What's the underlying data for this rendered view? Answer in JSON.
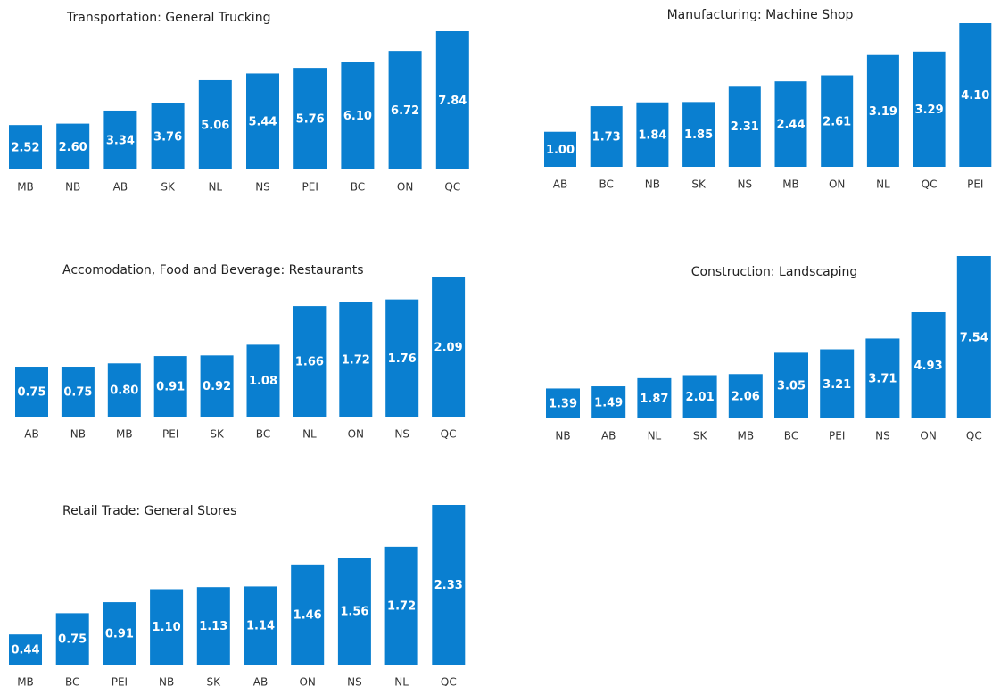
{
  "chart_data": [
    {
      "type": "bar",
      "title": "Transportation: General Trucking",
      "color": "#0a7fd0",
      "categories": [
        "MB",
        "NB",
        "AB",
        "SK",
        "NL",
        "NS",
        "PEI",
        "BC",
        "ON",
        "QC"
      ],
      "values": [
        2.52,
        2.6,
        3.34,
        3.76,
        5.06,
        5.44,
        5.76,
        6.1,
        6.72,
        7.84
      ],
      "value_labels": [
        "2.52",
        "2.60",
        "3.34",
        "3.76",
        "5.06",
        "5.44",
        "5.76",
        "6.10",
        "6.72",
        "7.84"
      ]
    },
    {
      "type": "bar",
      "title": "Manufacturing: Machine Shop",
      "color": "#0a7fd0",
      "categories": [
        "AB",
        "BC",
        "NB",
        "SK",
        "NS",
        "MB",
        "ON",
        "NL",
        "QC",
        "PEI"
      ],
      "values": [
        1,
        1.73,
        1.84,
        1.85,
        2.31,
        2.44,
        2.61,
        3.19,
        3.29,
        4.1
      ],
      "value_labels": [
        "1.00",
        "1.73",
        "1.84",
        "1.85",
        "2.31",
        "2.44",
        "2.61",
        "3.19",
        "3.29",
        "4.10"
      ]
    },
    {
      "type": "bar",
      "title": "Accomodation, Food and Beverage: Restaurants",
      "color": "#0a7fd0",
      "categories": [
        "AB",
        "NB",
        "MB",
        "PEI",
        "SK",
        "BC",
        "NL",
        "ON",
        "NS",
        "QC"
      ],
      "values": [
        0.75,
        0.75,
        0.8,
        0.91,
        0.92,
        1.08,
        1.66,
        1.72,
        1.76,
        2.09
      ],
      "value_labels": [
        "0.75",
        "0.75",
        "0.80",
        "0.91",
        "0.92",
        "1.08",
        "1.66",
        "1.72",
        "1.76",
        "2.09"
      ]
    },
    {
      "type": "bar",
      "title": "Construction: Landscaping",
      "color": "#0a7fd0",
      "categories": [
        "NB",
        "AB",
        "NL",
        "SK",
        "MB",
        "BC",
        "PEI",
        "NS",
        "ON",
        "QC"
      ],
      "values": [
        1.39,
        1.49,
        1.87,
        2.01,
        2.06,
        3.05,
        3.21,
        3.71,
        4.93,
        7.54
      ],
      "value_labels": [
        "1.39",
        "1.49",
        "1.87",
        "2.01",
        "2.06",
        "3.05",
        "3.21",
        "3.71",
        "4.93",
        "7.54"
      ]
    },
    {
      "type": "bar",
      "title": "Retail Trade: General Stores",
      "color": "#0a7fd0",
      "categories": [
        "MB",
        "BC",
        "PEI",
        "NB",
        "SK",
        "AB",
        "ON",
        "NS",
        "NL",
        "QC"
      ],
      "values": [
        0.44,
        0.75,
        0.91,
        1.1,
        1.13,
        1.14,
        1.46,
        1.56,
        1.72,
        2.33
      ],
      "value_labels": [
        "0.44",
        "0.75",
        "0.91",
        "1.10",
        "1.13",
        "1.14",
        "1.46",
        "1.56",
        "1.72",
        "2.33"
      ]
    }
  ]
}
